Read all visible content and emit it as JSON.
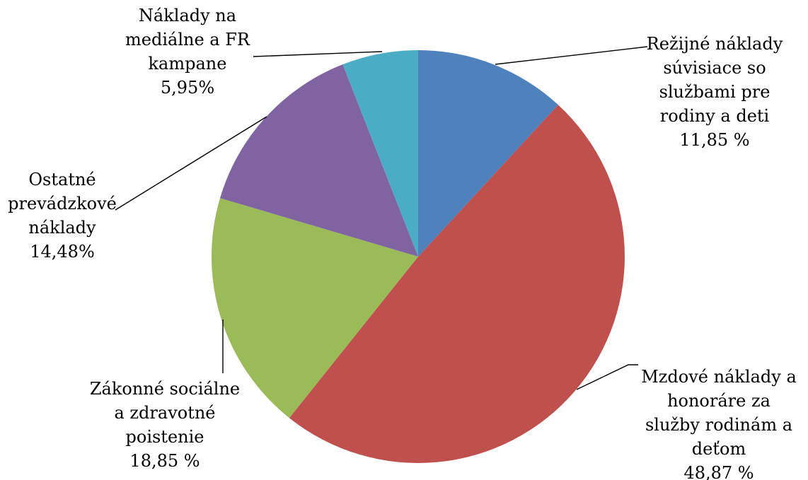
{
  "chart_data": {
    "type": "pie",
    "slices": [
      {
        "name": "Režijné náklady súvisiace so službami pre rodiny a deti",
        "value": 11.85,
        "label_lines": [
          "Režijné náklady",
          "súvisiace so",
          "službami pre",
          "rodiny a deti"
        ],
        "value_label": "11,85 %",
        "color": "#4F81BD"
      },
      {
        "name": "Mzdové náklady a honoráre za služby rodinám a deťom",
        "value": 48.87,
        "label_lines": [
          "Mzdové náklady a",
          "honoráre za",
          "služby rodinám a",
          "deťom"
        ],
        "value_label": "48,87 %",
        "color": "#C0504D"
      },
      {
        "name": "Zákonné sociálne a zdravotné poistenie",
        "value": 18.85,
        "label_lines": [
          "Zákonné sociálne",
          "a zdravotné",
          "poistenie"
        ],
        "value_label": "18,85 %",
        "color": "#9BBB59"
      },
      {
        "name": "Ostatné prevádzkové náklady",
        "value": 14.48,
        "label_lines": [
          "Ostatné",
          "prevádzkové",
          "náklady"
        ],
        "value_label": "14,48%",
        "color": "#8064A2"
      },
      {
        "name": "Náklady na mediálne a FR kampane",
        "value": 5.95,
        "label_lines": [
          "Náklady na",
          "mediálne a FR",
          "kampane"
        ],
        "value_label": "5,95%",
        "color": "#4BACC6"
      }
    ],
    "start_angle_deg": 0,
    "direction": "clockwise",
    "legend": "none",
    "data_labels": "outside-with-leader-lines"
  }
}
